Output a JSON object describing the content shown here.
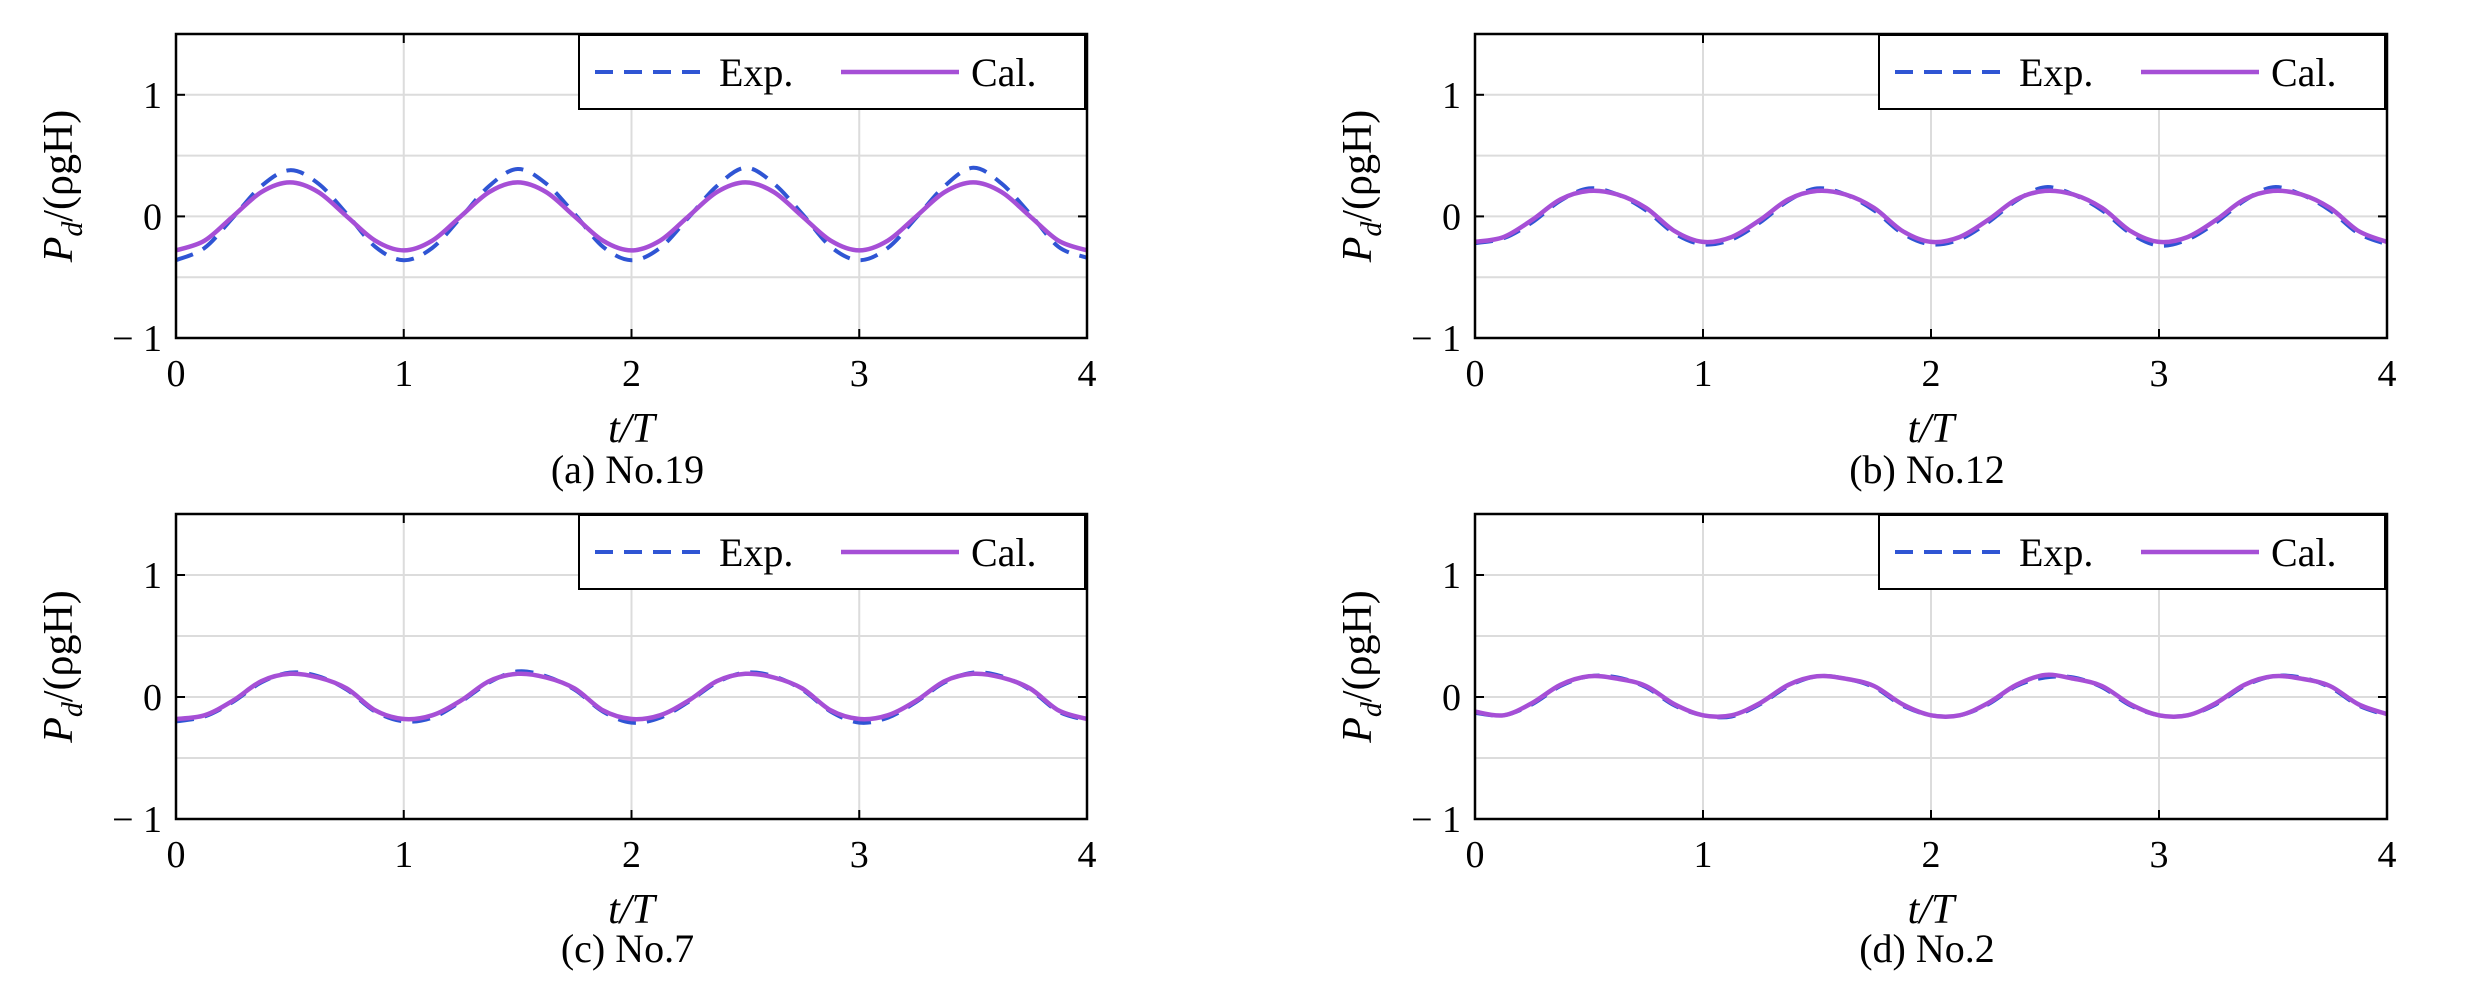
{
  "colors": {
    "exp_line": "#2f55d4",
    "cal_line": "#a64fd6",
    "grid": "#dcdcdc",
    "axis": "#000000",
    "background": "#ffffff"
  },
  "chart_data": [
    {
      "type": "line",
      "caption": "(a) No.19",
      "xlabel": "t/T",
      "ylabel_main": "P",
      "ylabel_sub": "d",
      "ylabel_tail": "/(ρgH)",
      "xlim": [
        0,
        4
      ],
      "ylim": [
        -1,
        1.5
      ],
      "xticks": [
        0,
        1,
        2,
        3,
        4
      ],
      "yticks": [
        -1,
        0,
        1
      ],
      "ytick_labels": [
        "− 1",
        "0",
        "1"
      ],
      "grid": true,
      "legend_position": "top-right",
      "series": [
        {
          "name": "Exp.",
          "style": "dashed",
          "x": [
            0,
            0.125,
            0.25,
            0.375,
            0.5,
            0.625,
            0.75,
            0.875,
            1.0,
            1.125,
            1.25,
            1.375,
            1.5,
            1.625,
            1.75,
            1.875,
            2.0,
            2.125,
            2.25,
            2.375,
            2.5,
            2.625,
            2.75,
            2.875,
            3.0,
            3.125,
            3.25,
            3.375,
            3.5,
            3.625,
            3.75,
            3.875,
            4.0
          ],
          "y": [
            -0.36,
            -0.26,
            -0.01,
            0.25,
            0.38,
            0.27,
            0.02,
            -0.25,
            -0.36,
            -0.26,
            -0.01,
            0.25,
            0.39,
            0.27,
            0.02,
            -0.25,
            -0.36,
            -0.26,
            -0.01,
            0.25,
            0.4,
            0.27,
            0.02,
            -0.25,
            -0.36,
            -0.26,
            -0.01,
            0.25,
            0.4,
            0.27,
            0.02,
            -0.25,
            -0.34
          ]
        },
        {
          "name": "Cal.",
          "style": "solid",
          "x": [
            0,
            0.125,
            0.25,
            0.375,
            0.5,
            0.625,
            0.75,
            0.875,
            1.0,
            1.125,
            1.25,
            1.375,
            1.5,
            1.625,
            1.75,
            1.875,
            2.0,
            2.125,
            2.25,
            2.375,
            2.5,
            2.625,
            2.75,
            2.875,
            3.0,
            3.125,
            3.25,
            3.375,
            3.5,
            3.625,
            3.75,
            3.875,
            4.0
          ],
          "y": [
            -0.28,
            -0.2,
            0.0,
            0.2,
            0.28,
            0.2,
            0.0,
            -0.2,
            -0.28,
            -0.2,
            0.0,
            0.2,
            0.28,
            0.2,
            0.0,
            -0.2,
            -0.28,
            -0.2,
            0.0,
            0.2,
            0.28,
            0.2,
            0.0,
            -0.2,
            -0.28,
            -0.2,
            0.0,
            0.2,
            0.28,
            0.2,
            0.0,
            -0.2,
            -0.28
          ]
        }
      ]
    },
    {
      "type": "line",
      "caption": "(b) No.12",
      "xlabel": "t/T",
      "ylabel_main": "P",
      "ylabel_sub": "d",
      "ylabel_tail": "/(ρgH)",
      "xlim": [
        0,
        4
      ],
      "ylim": [
        -1,
        1.5
      ],
      "xticks": [
        0,
        1,
        2,
        3,
        4
      ],
      "yticks": [
        -1,
        0,
        1
      ],
      "ytick_labels": [
        "− 1",
        "0",
        "1"
      ],
      "grid": true,
      "legend_position": "top-right",
      "series": [
        {
          "name": "Exp.",
          "style": "dashed",
          "x": [
            0,
            0.125,
            0.25,
            0.375,
            0.5,
            0.625,
            0.75,
            0.875,
            1.0,
            1.125,
            1.25,
            1.375,
            1.5,
            1.625,
            1.75,
            1.875,
            2.0,
            2.125,
            2.25,
            2.375,
            2.5,
            2.625,
            2.75,
            2.875,
            3.0,
            3.125,
            3.25,
            3.375,
            3.5,
            3.625,
            3.75,
            3.875,
            4.0
          ],
          "y": [
            -0.22,
            -0.18,
            -0.05,
            0.13,
            0.23,
            0.18,
            0.05,
            -0.14,
            -0.23,
            -0.19,
            -0.05,
            0.13,
            0.23,
            0.18,
            0.05,
            -0.14,
            -0.23,
            -0.19,
            -0.05,
            0.13,
            0.24,
            0.18,
            0.05,
            -0.14,
            -0.24,
            -0.19,
            -0.05,
            0.13,
            0.24,
            0.18,
            0.05,
            -0.14,
            -0.23
          ]
        },
        {
          "name": "Cal.",
          "style": "solid",
          "x": [
            0,
            0.125,
            0.25,
            0.375,
            0.5,
            0.625,
            0.75,
            0.875,
            1.0,
            1.125,
            1.25,
            1.375,
            1.5,
            1.625,
            1.75,
            1.875,
            2.0,
            2.125,
            2.25,
            2.375,
            2.5,
            2.625,
            2.75,
            2.875,
            3.0,
            3.125,
            3.25,
            3.375,
            3.5,
            3.625,
            3.75,
            3.875,
            4.0
          ],
          "y": [
            -0.21,
            -0.17,
            -0.03,
            0.14,
            0.21,
            0.18,
            0.07,
            -0.12,
            -0.21,
            -0.17,
            -0.03,
            0.14,
            0.21,
            0.18,
            0.07,
            -0.12,
            -0.21,
            -0.17,
            -0.03,
            0.14,
            0.21,
            0.18,
            0.07,
            -0.12,
            -0.21,
            -0.17,
            -0.03,
            0.14,
            0.21,
            0.18,
            0.07,
            -0.12,
            -0.21
          ]
        }
      ]
    },
    {
      "type": "line",
      "caption": "(c) No.7",
      "xlabel": "t/T",
      "ylabel_main": "P",
      "ylabel_sub": "d",
      "ylabel_tail": "/(ρgH)",
      "xlim": [
        0,
        4
      ],
      "ylim": [
        -1,
        1.5
      ],
      "xticks": [
        0,
        1,
        2,
        3,
        4
      ],
      "yticks": [
        -1,
        0,
        1
      ],
      "ytick_labels": [
        "− 1",
        "0",
        "1"
      ],
      "grid": true,
      "legend_position": "top-right",
      "series": [
        {
          "name": "Exp.",
          "style": "dashed",
          "x": [
            0,
            0.125,
            0.25,
            0.375,
            0.5,
            0.625,
            0.75,
            0.875,
            1.0,
            1.125,
            1.25,
            1.375,
            1.5,
            1.625,
            1.75,
            1.875,
            2.0,
            2.125,
            2.25,
            2.375,
            2.5,
            2.625,
            2.75,
            2.875,
            3.0,
            3.125,
            3.25,
            3.375,
            3.5,
            3.625,
            3.75,
            3.875,
            4.0
          ],
          "y": [
            -0.2,
            -0.16,
            -0.04,
            0.12,
            0.2,
            0.17,
            0.06,
            -0.12,
            -0.2,
            -0.17,
            -0.04,
            0.12,
            0.21,
            0.17,
            0.06,
            -0.12,
            -0.21,
            -0.17,
            -0.04,
            0.12,
            0.2,
            0.17,
            0.06,
            -0.12,
            -0.21,
            -0.17,
            -0.04,
            0.12,
            0.2,
            0.17,
            0.06,
            -0.12,
            -0.19
          ]
        },
        {
          "name": "Cal.",
          "style": "solid",
          "x": [
            0,
            0.125,
            0.25,
            0.375,
            0.5,
            0.625,
            0.75,
            0.875,
            1.0,
            1.125,
            1.25,
            1.375,
            1.5,
            1.625,
            1.75,
            1.875,
            2.0,
            2.125,
            2.25,
            2.375,
            2.5,
            2.625,
            2.75,
            2.875,
            3.0,
            3.125,
            3.25,
            3.375,
            3.5,
            3.625,
            3.75,
            3.875,
            4.0
          ],
          "y": [
            -0.18,
            -0.15,
            -0.03,
            0.13,
            0.19,
            0.16,
            0.07,
            -0.11,
            -0.18,
            -0.15,
            -0.03,
            0.13,
            0.19,
            0.16,
            0.07,
            -0.11,
            -0.18,
            -0.15,
            -0.03,
            0.13,
            0.19,
            0.16,
            0.07,
            -0.11,
            -0.18,
            -0.15,
            -0.03,
            0.13,
            0.19,
            0.16,
            0.07,
            -0.11,
            -0.18
          ]
        }
      ]
    },
    {
      "type": "line",
      "caption": "(d) No.2",
      "xlabel": "t/T",
      "ylabel_main": "P",
      "ylabel_sub": "d",
      "ylabel_tail": "/(ρgH)",
      "xlim": [
        0,
        4
      ],
      "ylim": [
        -1,
        1.5
      ],
      "xticks": [
        0,
        1,
        2,
        3,
        4
      ],
      "yticks": [
        -1,
        0,
        1
      ],
      "ytick_labels": [
        "− 1",
        "0",
        "1"
      ],
      "grid": true,
      "legend_position": "top-right",
      "series": [
        {
          "name": "Exp.",
          "style": "dashed",
          "x": [
            0,
            0.125,
            0.25,
            0.375,
            0.5,
            0.625,
            0.75,
            0.875,
            1.0,
            1.125,
            1.25,
            1.375,
            1.5,
            1.625,
            1.75,
            1.875,
            2.0,
            2.125,
            2.25,
            2.375,
            2.5,
            2.625,
            2.75,
            2.875,
            3.0,
            3.125,
            3.25,
            3.375,
            3.5,
            3.625,
            3.75,
            3.875,
            4.0
          ],
          "y": [
            -0.13,
            -0.15,
            -0.06,
            0.09,
            0.17,
            0.16,
            0.08,
            -0.07,
            -0.15,
            -0.16,
            -0.06,
            0.09,
            0.17,
            0.15,
            0.08,
            -0.07,
            -0.15,
            -0.15,
            -0.06,
            0.09,
            0.16,
            0.16,
            0.08,
            -0.07,
            -0.15,
            -0.15,
            -0.06,
            0.09,
            0.17,
            0.16,
            0.08,
            -0.07,
            -0.15
          ]
        },
        {
          "name": "Cal.",
          "style": "solid",
          "x": [
            0,
            0.125,
            0.25,
            0.375,
            0.5,
            0.625,
            0.75,
            0.875,
            1.0,
            1.125,
            1.25,
            1.375,
            1.5,
            1.625,
            1.75,
            1.875,
            2.0,
            2.125,
            2.25,
            2.375,
            2.5,
            2.625,
            2.75,
            2.875,
            3.0,
            3.125,
            3.25,
            3.375,
            3.5,
            3.625,
            3.75,
            3.875,
            4.0
          ],
          "y": [
            -0.12,
            -0.15,
            -0.05,
            0.1,
            0.17,
            0.15,
            0.09,
            -0.06,
            -0.15,
            -0.15,
            -0.05,
            0.1,
            0.17,
            0.15,
            0.09,
            -0.06,
            -0.15,
            -0.15,
            -0.05,
            0.1,
            0.18,
            0.15,
            0.09,
            -0.06,
            -0.15,
            -0.15,
            -0.05,
            0.1,
            0.17,
            0.15,
            0.09,
            -0.06,
            -0.14
          ]
        }
      ]
    }
  ]
}
